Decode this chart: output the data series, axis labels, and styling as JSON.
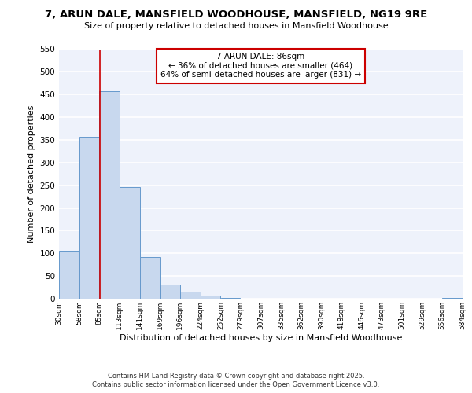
{
  "title": "7, ARUN DALE, MANSFIELD WOODHOUSE, MANSFIELD, NG19 9RE",
  "subtitle": "Size of property relative to detached houses in Mansfield Woodhouse",
  "xlabel": "Distribution of detached houses by size in Mansfield Woodhouse",
  "ylabel": "Number of detached properties",
  "bar_values": [
    106,
    357,
    457,
    246,
    91,
    32,
    15,
    7,
    2,
    0,
    0,
    0,
    0,
    0,
    0,
    0,
    0,
    0,
    0,
    2
  ],
  "bin_edges": [
    30,
    58,
    85,
    113,
    141,
    169,
    196,
    224,
    252,
    279,
    307,
    335,
    362,
    390,
    418,
    446,
    473,
    501,
    529,
    556,
    584
  ],
  "bar_color": "#c8d8ee",
  "bar_edge_color": "#6699cc",
  "vline_color": "#cc0000",
  "vline_x": 86,
  "annotation_line1": "7 ARUN DALE: 86sqm",
  "annotation_line2": "← 36% of detached houses are smaller (464)",
  "annotation_line3": "64% of semi-detached houses are larger (831) →",
  "annotation_box_color": "white",
  "annotation_box_edge": "#cc0000",
  "ylim": [
    0,
    550
  ],
  "yticks": [
    0,
    50,
    100,
    150,
    200,
    250,
    300,
    350,
    400,
    450,
    500,
    550
  ],
  "tick_labels": [
    "30sqm",
    "58sqm",
    "85sqm",
    "113sqm",
    "141sqm",
    "169sqm",
    "196sqm",
    "224sqm",
    "252sqm",
    "279sqm",
    "307sqm",
    "335sqm",
    "362sqm",
    "390sqm",
    "418sqm",
    "446sqm",
    "473sqm",
    "501sqm",
    "529sqm",
    "556sqm",
    "584sqm"
  ],
  "background_color": "#eef2fb",
  "grid_color": "white",
  "footer_line1": "Contains HM Land Registry data © Crown copyright and database right 2025.",
  "footer_line2": "Contains public sector information licensed under the Open Government Licence v3.0."
}
